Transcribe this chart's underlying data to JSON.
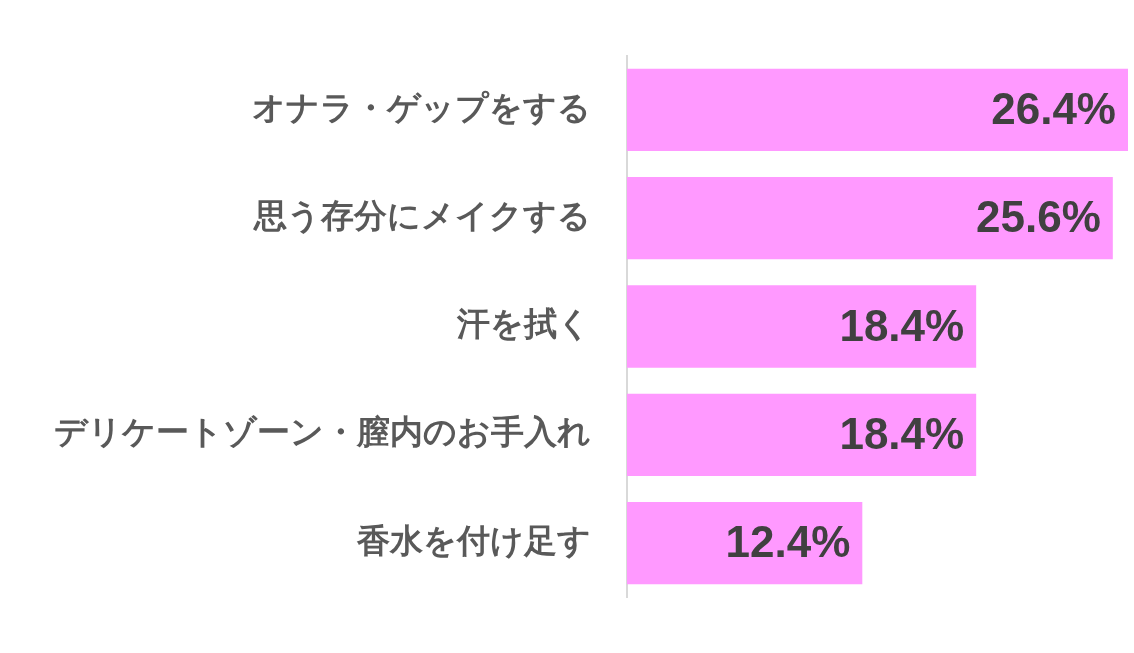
{
  "chart_data": {
    "type": "bar",
    "orientation": "horizontal",
    "categories": [
      "オナラ・ゲップをする",
      "思う存分にメイクする",
      "汗を拭く",
      "デリケートゾーン・膣内のお手入れ",
      "香水を付け足す"
    ],
    "values": [
      26.4,
      25.6,
      18.4,
      18.4,
      12.4
    ],
    "color": "#ff99ff",
    "value_labels": [
      "26.4%",
      "25.6%",
      "18.4%",
      "18.4%",
      "12.4%"
    ]
  }
}
